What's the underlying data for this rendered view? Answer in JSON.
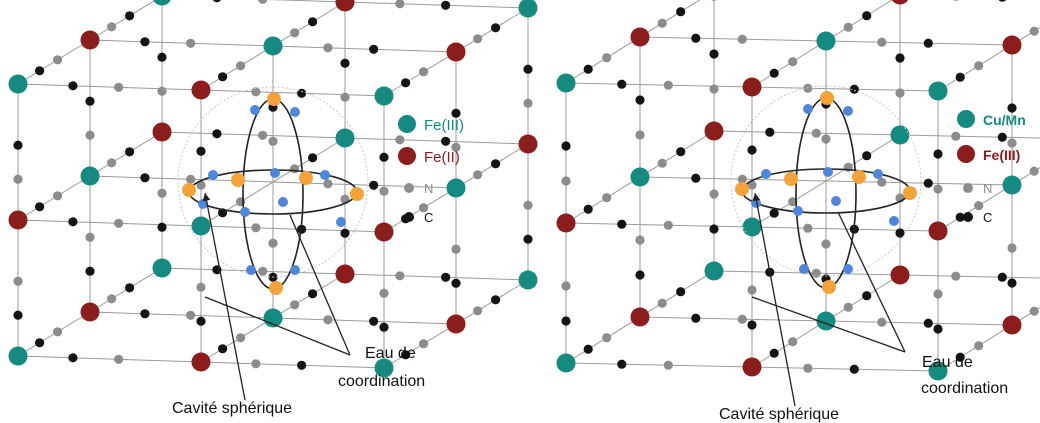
{
  "colors": {
    "fe_iii": "#148a80",
    "fe_ii": "#8c1d1d",
    "cu_mn": "#148a80",
    "fe_iii_right": "#8c1d1d",
    "nitrogen": "#8c8c8c",
    "carbon": "#141414",
    "coordination_water": "#f4a23a",
    "cavity_atom": "#4f86d9",
    "lattice_line": "#9a9a9a"
  },
  "left_panel": {
    "legend": [
      {
        "label": "Fe(III)",
        "color_key": "fe_iii",
        "size": "large"
      },
      {
        "label": "Fe(II)",
        "color_key": "fe_ii",
        "size": "large"
      },
      {
        "label": "N",
        "color_key": "nitrogen",
        "size": "small"
      },
      {
        "label": "C",
        "color_key": "carbon",
        "size": "small"
      }
    ],
    "water_label_line1": "Eau de",
    "water_label_line2": "coordination",
    "cavity_label": "Cavité sphérique"
  },
  "right_panel": {
    "legend": [
      {
        "label": "Cu/Mn",
        "color_key": "cu_mn",
        "size": "large"
      },
      {
        "label": "Fe(III)",
        "color_key": "fe_iii_right",
        "size": "large"
      },
      {
        "label": "N",
        "color_key": "nitrogen",
        "size": "small"
      },
      {
        "label": "C",
        "color_key": "carbon",
        "size": "small"
      }
    ],
    "water_label_line1": "Eau de",
    "water_label_line2": "coordination",
    "cavity_label": "Cavité sphérique"
  }
}
